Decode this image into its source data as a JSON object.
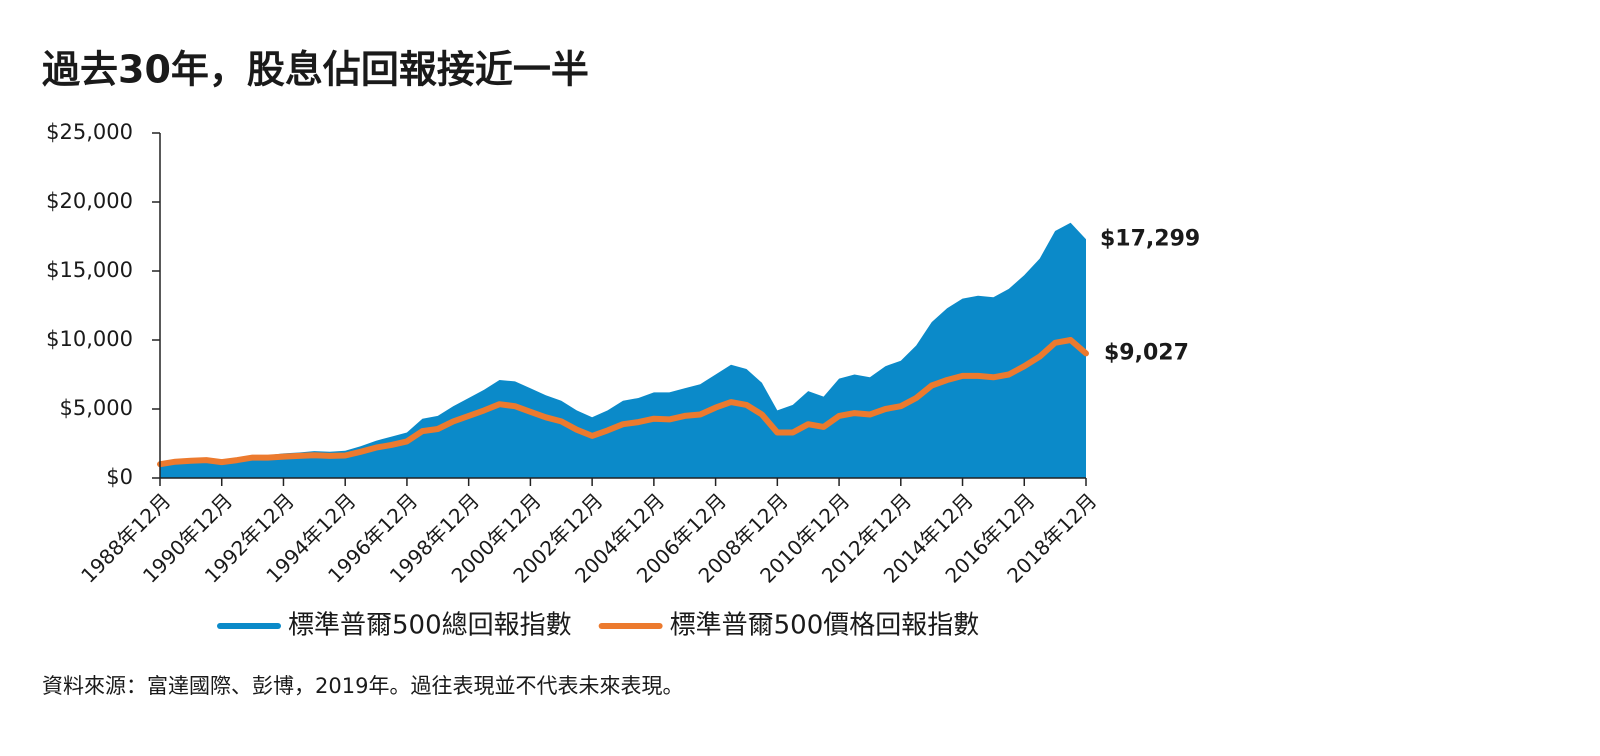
{
  "chart_data": {
    "type": "area-line",
    "title": "過去30年，股息佔回報接近一半",
    "source": "資料來源：富達國際、彭博，2019年。過往表現並不代表未來表現。",
    "categories": [
      "1988年12月",
      null,
      null,
      null,
      "1990年12月",
      null,
      null,
      null,
      "1992年12月",
      null,
      null,
      null,
      "1994年12月",
      null,
      null,
      null,
      "1996年12月",
      null,
      null,
      null,
      "1998年12月",
      null,
      null,
      null,
      "2000年12月",
      null,
      null,
      null,
      "2002年12月",
      null,
      null,
      null,
      "2004年12月",
      null,
      null,
      null,
      "2006年12月",
      null,
      null,
      null,
      "2008年12月",
      null,
      null,
      null,
      "2010年12月",
      null,
      null,
      null,
      "2012年12月",
      null,
      null,
      null,
      "2014年12月",
      null,
      null,
      null,
      "2016年12月",
      null,
      null,
      null,
      "2018年12月"
    ],
    "series": [
      {
        "name": "標準普爾500總回報指數",
        "color": "#0b8ac9",
        "style": "area",
        "values": [
          1000,
          1200,
          1320,
          1400,
          1280,
          1400,
          1650,
          1650,
          1780,
          1850,
          1950,
          1900,
          1980,
          2300,
          2700,
          3000,
          3300,
          4300,
          4500,
          5200,
          5800,
          6400,
          7100,
          7000,
          6500,
          6000,
          5600,
          4900,
          4400,
          4900,
          5600,
          5800,
          6200,
          6200,
          6500,
          6800,
          7500,
          8200,
          7900,
          6900,
          4900,
          5300,
          6300,
          5900,
          7200,
          7500,
          7300,
          8100,
          8500,
          9600,
          11300,
          12300,
          13000,
          13200,
          13100,
          13700,
          14700,
          15900,
          17900,
          18500,
          17299
        ],
        "value_labels": [
          null,
          null,
          null,
          null,
          null,
          null,
          null,
          null,
          null,
          null,
          null,
          null,
          null,
          null,
          null,
          null,
          null,
          null,
          null,
          null,
          null,
          null,
          null,
          null,
          null,
          null,
          null,
          null,
          null,
          null,
          null,
          null,
          null,
          null,
          null,
          null,
          null,
          null,
          null,
          null,
          null,
          null,
          null,
          null,
          null,
          null,
          null,
          null,
          null,
          null,
          null,
          null,
          null,
          null,
          null,
          null,
          null,
          null,
          null,
          null,
          "$17,299"
        ]
      },
      {
        "name": "標準普爾500價格回報指數",
        "color": "#ec7a2e",
        "style": "line",
        "values": [
          1000,
          1180,
          1250,
          1300,
          1150,
          1300,
          1480,
          1480,
          1550,
          1600,
          1650,
          1600,
          1630,
          1900,
          2200,
          2400,
          2650,
          3400,
          3550,
          4100,
          4500,
          4900,
          5350,
          5200,
          4800,
          4400,
          4100,
          3500,
          3050,
          3450,
          3900,
          4050,
          4300,
          4250,
          4500,
          4600,
          5100,
          5500,
          5300,
          4600,
          3300,
          3300,
          3900,
          3700,
          4500,
          4700,
          4600,
          5000,
          5200,
          5800,
          6700,
          7100,
          7400,
          7400,
          7300,
          7500,
          8100,
          8800,
          9800,
          10000,
          9027
        ],
        "value_labels": [
          null,
          null,
          null,
          null,
          null,
          null,
          null,
          null,
          null,
          null,
          null,
          null,
          null,
          null,
          null,
          null,
          null,
          null,
          null,
          null,
          null,
          null,
          null,
          null,
          null,
          null,
          null,
          null,
          null,
          null,
          null,
          null,
          null,
          null,
          null,
          null,
          null,
          null,
          null,
          null,
          null,
          null,
          null,
          null,
          null,
          null,
          null,
          null,
          null,
          null,
          null,
          null,
          null,
          null,
          null,
          null,
          null,
          null,
          null,
          null,
          "$9,027"
        ]
      }
    ],
    "ylim": [
      0,
      25000
    ],
    "yticks": [
      {
        "value": 0,
        "label": "$0"
      },
      {
        "value": 5000,
        "label": "$5,000"
      },
      {
        "value": 10000,
        "label": "$10,000"
      },
      {
        "value": 15000,
        "label": "$15,000"
      },
      {
        "value": 20000,
        "label": "$20,000"
      },
      {
        "value": 25000,
        "label": "$25,000"
      }
    ],
    "grid": false
  }
}
